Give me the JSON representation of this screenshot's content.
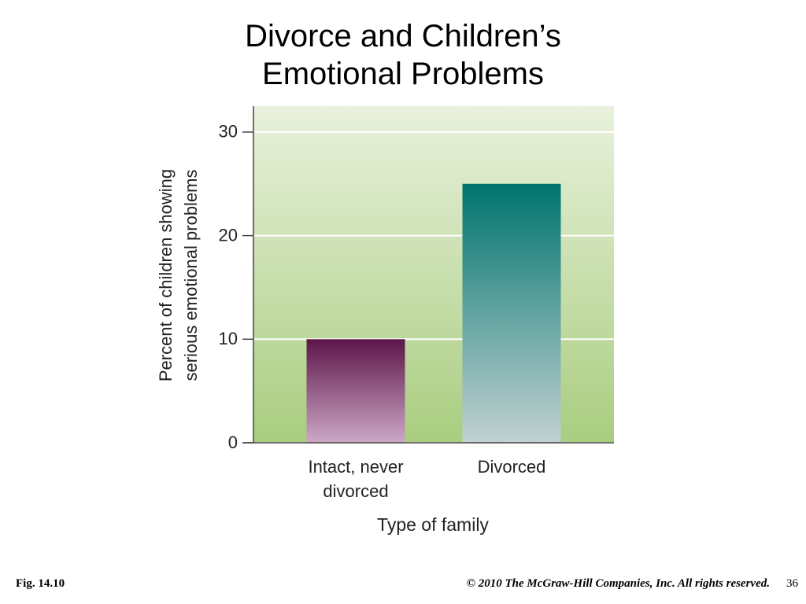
{
  "chart_data": {
    "type": "bar",
    "title": "Divorce and Children’s Emotional Problems",
    "ylabel": [
      "Percent of children showing",
      "serious emotional problems"
    ],
    "xlabel": "Type of family",
    "categories": [
      "Intact, never divorced",
      "Divorced"
    ],
    "values": [
      10,
      25
    ],
    "bar_gradients": [
      {
        "top": "#5d1549",
        "bottom": "#cda8c6"
      },
      {
        "top": "#00746e",
        "bottom": "#c2d2d2"
      }
    ],
    "background_gradient": {
      "top": "#e9f1dc",
      "bottom": "#a9cd80"
    },
    "ylim": [
      0,
      32.5
    ],
    "yticks": [
      0,
      10,
      20,
      30
    ],
    "grid": true
  },
  "footer": {
    "figure": "Fig. 14.10",
    "copyright": "© 2010 The McGraw-Hill Companies, Inc. All rights reserved.",
    "page": 36
  }
}
